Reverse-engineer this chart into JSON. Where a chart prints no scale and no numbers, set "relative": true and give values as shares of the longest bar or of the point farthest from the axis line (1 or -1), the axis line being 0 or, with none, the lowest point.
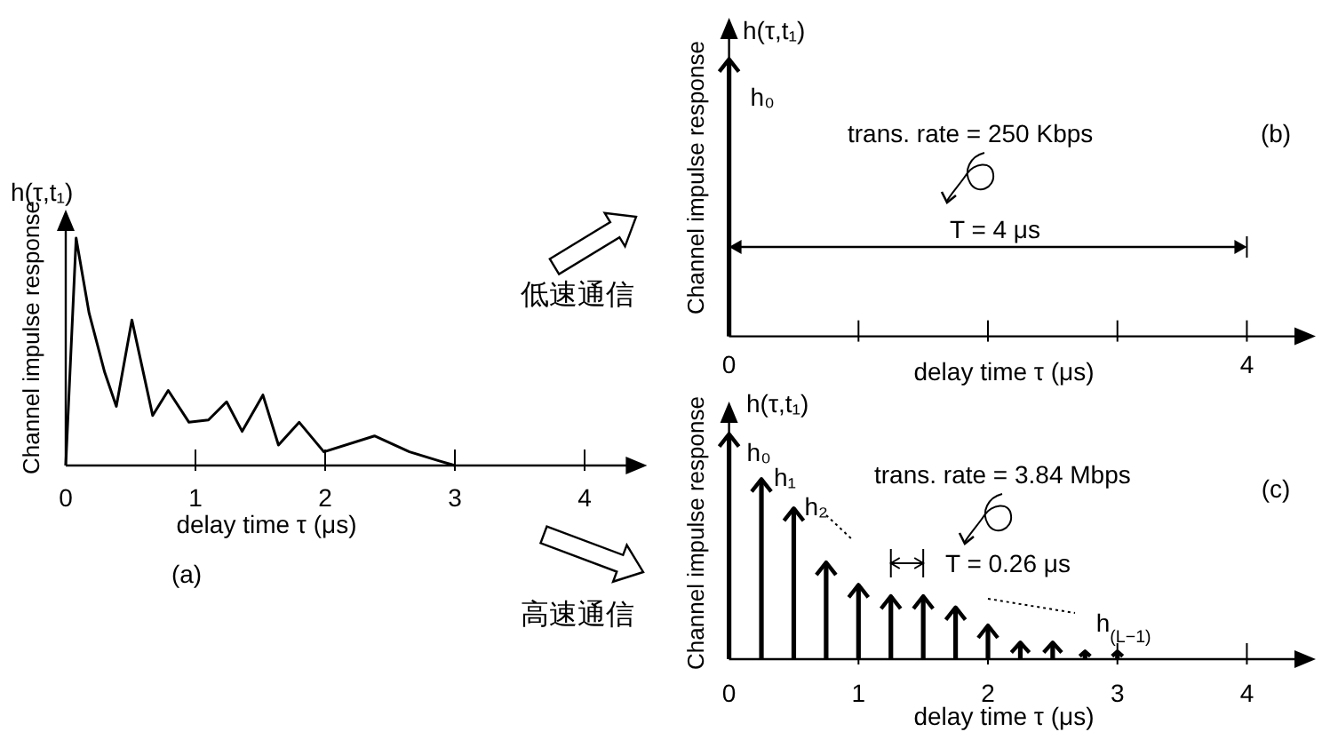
{
  "chart_data": [
    {
      "type": "line",
      "title": "(a)",
      "xlabel": "delay time τ (μs)",
      "ylabel": "Channel impulse response",
      "relative": true,
      "color": "#000000",
      "x": [
        0,
        0.08,
        0.18,
        0.3,
        0.39,
        0.51,
        0.67,
        0.79,
        0.95,
        1.1,
        1.24,
        1.36,
        1.52,
        1.64,
        1.8,
        1.99,
        2.38,
        2.65,
        2.88,
        3.0
      ],
      "values": [
        0,
        1,
        0.67,
        0.41,
        0.26,
        0.64,
        0.22,
        0.33,
        0.19,
        0.2,
        0.28,
        0.15,
        0.31,
        0.09,
        0.19,
        0.06,
        0.13,
        0.06,
        0.02,
        0
      ],
      "xlim": [
        0,
        4.4
      ],
      "xticks": [
        0,
        1,
        2,
        3,
        4
      ],
      "annotations": [
        "h(τ,t₁)"
      ]
    },
    {
      "type": "bar",
      "title": "(b)",
      "xlabel": "delay time τ (μs)",
      "ylabel": "Channel impulse response",
      "relative": true,
      "color": "#000000",
      "x": [
        0
      ],
      "values": [
        1
      ],
      "xlim": [
        0,
        4.45
      ],
      "xticks": [
        0,
        {
          "value": 1,
          "label": null
        },
        {
          "value": 2,
          "label": null
        },
        {
          "value": 3,
          "label": null
        },
        4
      ],
      "annotations": [
        {
          "text": "h₀",
          "x": 0,
          "y": 1
        },
        "h(τ,t₁)",
        "trans. rate = 250 Kbps",
        "T  = 4 μs",
        "低速通信"
      ]
    },
    {
      "type": "bar",
      "title": "(c)",
      "xlabel": "delay time τ (μs)",
      "ylabel": "Channel impulse response",
      "relative": true,
      "color": "#000000",
      "x": [
        0,
        0.25,
        0.5,
        0.75,
        1,
        1.25,
        1.5,
        1.75,
        2,
        2.25,
        2.5,
        2.75,
        3
      ],
      "values": [
        1,
        0.8,
        0.67,
        0.43,
        0.33,
        0.28,
        0.28,
        0.23,
        0.15,
        0.074,
        0.074,
        0.034,
        0.034
      ],
      "xlim": [
        0,
        4.45
      ],
      "xticks": [
        0,
        1,
        2,
        3,
        4
      ],
      "annotations": [
        {
          "text": "h₀",
          "x": 0,
          "y": 1
        },
        {
          "text": "h₁",
          "x": 0.25,
          "y": 0.8
        },
        {
          "text": "h₂",
          "x": 0.5,
          "y": 0.67
        },
        {
          "text": "h$_{(L−1)}$",
          "x": 3,
          "y": 0.034
        },
        "h(τ,t₁)",
        "trans. rate = 3.84 Mbps",
        "T = 0.26 μs",
        "高速通信"
      ]
    }
  ]
}
